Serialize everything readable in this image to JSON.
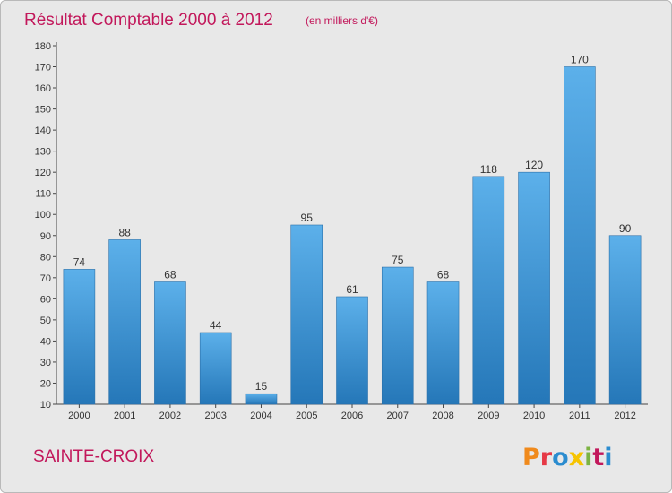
{
  "chart_data": {
    "type": "bar",
    "title": "Résultat Comptable 2000 à 2012",
    "subtitle": "(en milliers d'€)",
    "categories": [
      "2000",
      "2001",
      "2002",
      "2003",
      "2004",
      "2005",
      "2006",
      "2007",
      "2008",
      "2009",
      "2010",
      "2011",
      "2012"
    ],
    "values": [
      74,
      88,
      68,
      44,
      15,
      95,
      61,
      75,
      68,
      118,
      120,
      170,
      90
    ],
    "ylim": [
      10,
      180
    ],
    "yticks": [
      10,
      20,
      30,
      40,
      50,
      60,
      70,
      80,
      90,
      100,
      110,
      120,
      130,
      140,
      150,
      160,
      170,
      180
    ],
    "grid": false,
    "bar_color": "#3d96d6"
  },
  "footer": {
    "place_name": "SAINTE-CROIX",
    "logo_text": "Proxiti",
    "logo_colors": [
      "#f08a1c",
      "#e63946",
      "#2b8ccf",
      "#f6c400",
      "#7cb342",
      "#c2185b",
      "#2b8ccf"
    ]
  }
}
